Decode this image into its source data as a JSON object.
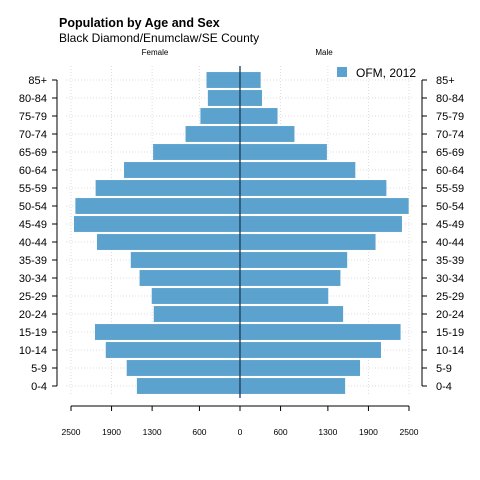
{
  "chart_data": {
    "type": "bar",
    "orientation": "horizontal-pyramid",
    "title": "Population by Age and Sex",
    "subtitle": "Black Diamond/Enumclaw/SE County",
    "left_label": "Female",
    "right_label": "Male",
    "categories": [
      "0-4",
      "5-9",
      "10-14",
      "15-19",
      "20-24",
      "25-29",
      "30-34",
      "35-39",
      "40-44",
      "45-49",
      "50-54",
      "55-59",
      "60-64",
      "65-69",
      "70-74",
      "75-79",
      "80-84",
      "85+"
    ],
    "x_ticks": [
      "2500",
      "1900",
      "1300",
      "600",
      "0",
      "600",
      "1300",
      "1900",
      "2500"
    ],
    "tick_values": [
      -2500,
      -1900,
      -1300,
      -600,
      0,
      600,
      1300,
      1900,
      2500
    ],
    "xlim": [
      -2500,
      2500
    ],
    "series": [
      {
        "name": "OFM, 2012",
        "female": [
          1530,
          1680,
          1990,
          2150,
          1280,
          1310,
          1490,
          1620,
          2120,
          2460,
          2440,
          2140,
          1720,
          1290,
          810,
          590,
          480,
          500
        ],
        "male": [
          1560,
          1780,
          2090,
          2380,
          1530,
          1310,
          1490,
          1590,
          2010,
          2400,
          2500,
          2170,
          1710,
          1290,
          810,
          560,
          330,
          310
        ]
      }
    ],
    "legend_position": "top-right",
    "grid": true,
    "colors": {
      "bar_fill": "#5BA2CF",
      "bar_stroke": "#ffffff",
      "center_line": "#1B3A57",
      "grid": "#DDDDDD"
    }
  }
}
